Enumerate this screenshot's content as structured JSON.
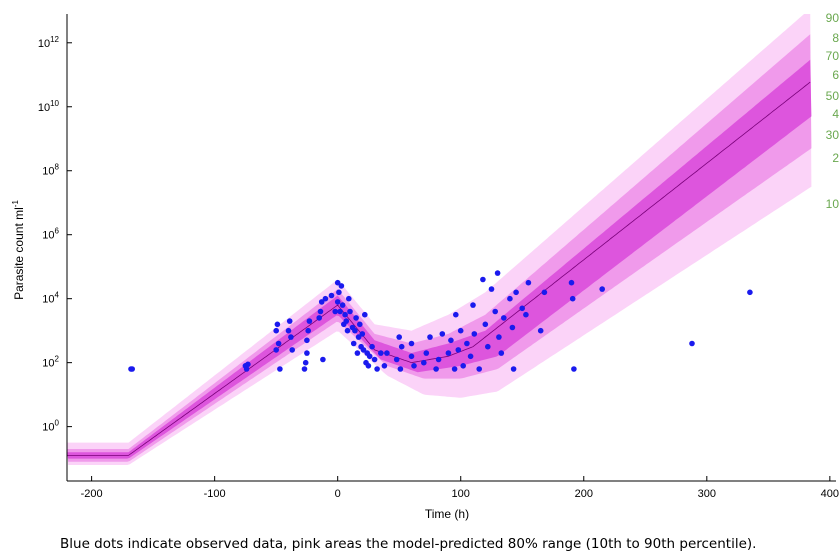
{
  "caption": "Blue dots indicate observed data, pink areas the model-predicted 80% range (10th to 90th percentile).",
  "right_edge_labels": [
    "90",
    "8",
    "70",
    "6",
    "50",
    "4",
    "30",
    "2",
    "10"
  ],
  "colors": {
    "band_outer": "#fbd3f8",
    "band_middle": "#f09aeb",
    "band_inner": "#dd55dd",
    "band_core": "#cc22cc",
    "median_line": "#7a007a",
    "dots": "#1a1aee",
    "axis": "#000000",
    "right_labels": "#6aa84f"
  },
  "chart_data": {
    "type": "scatter",
    "xlabel": "Time (h)",
    "ylabel": "Parasite count ml",
    "ylabel_sup": "-1",
    "xlim": [
      -220,
      405
    ],
    "ylim_log10": [
      -1.7,
      12.9
    ],
    "y_scale": "log10",
    "x_ticks": [
      -200,
      -100,
      0,
      100,
      200,
      300,
      400
    ],
    "y_ticks_exp": [
      0,
      2,
      4,
      6,
      8,
      10,
      12
    ],
    "y_tick_base": "10",
    "median_curve": [
      [
        -220,
        -0.9
      ],
      [
        -170,
        -0.9
      ],
      [
        0,
        3.8
      ],
      [
        30,
        2.4
      ],
      [
        60,
        2.0
      ],
      [
        90,
        2.2
      ],
      [
        110,
        2.5
      ],
      [
        385,
        10.8
      ]
    ],
    "bands": [
      {
        "name": "outer",
        "lower": [
          [
            -220,
            -1.2
          ],
          [
            -170,
            -1.2
          ],
          [
            0,
            3.0
          ],
          [
            40,
            1.6
          ],
          [
            70,
            1.0
          ],
          [
            100,
            0.9
          ],
          [
            130,
            1.1
          ],
          [
            385,
            7.5
          ]
        ],
        "upper": [
          [
            -220,
            -0.5
          ],
          [
            -170,
            -0.5
          ],
          [
            0,
            4.6
          ],
          [
            30,
            3.2
          ],
          [
            60,
            3.0
          ],
          [
            90,
            3.5
          ],
          [
            120,
            4.2
          ],
          [
            385,
            13.1
          ]
        ]
      },
      {
        "name": "middle",
        "lower": [
          [
            -220,
            -1.1
          ],
          [
            -170,
            -1.1
          ],
          [
            0,
            3.3
          ],
          [
            40,
            1.9
          ],
          [
            70,
            1.5
          ],
          [
            100,
            1.5
          ],
          [
            130,
            1.8
          ],
          [
            385,
            8.7
          ]
        ],
        "upper": [
          [
            -220,
            -0.7
          ],
          [
            -170,
            -0.7
          ],
          [
            0,
            4.3
          ],
          [
            30,
            2.9
          ],
          [
            60,
            2.6
          ],
          [
            90,
            2.9
          ],
          [
            120,
            3.5
          ],
          [
            385,
            12.3
          ]
        ]
      },
      {
        "name": "inner",
        "lower": [
          [
            -220,
            -1.0
          ],
          [
            -170,
            -1.0
          ],
          [
            0,
            3.5
          ],
          [
            35,
            2.1
          ],
          [
            65,
            1.7
          ],
          [
            100,
            1.9
          ],
          [
            130,
            2.2
          ],
          [
            385,
            9.7
          ]
        ],
        "upper": [
          [
            -220,
            -0.8
          ],
          [
            -170,
            -0.8
          ],
          [
            0,
            4.1
          ],
          [
            30,
            2.7
          ],
          [
            60,
            2.3
          ],
          [
            90,
            2.6
          ],
          [
            120,
            3.0
          ],
          [
            385,
            11.5
          ]
        ]
      }
    ],
    "points": [
      [
        -168,
        1.8
      ],
      [
        -167,
        1.8
      ],
      [
        -75,
        1.9
      ],
      [
        -74,
        1.8
      ],
      [
        -73,
        1.95
      ],
      [
        -50,
        2.4
      ],
      [
        -50,
        3.0
      ],
      [
        -49,
        3.2
      ],
      [
        -48,
        2.6
      ],
      [
        -47,
        1.8
      ],
      [
        -40,
        3.0
      ],
      [
        -39,
        3.3
      ],
      [
        -38,
        2.8
      ],
      [
        -37,
        2.4
      ],
      [
        -27,
        1.8
      ],
      [
        -26,
        2.0
      ],
      [
        -25,
        2.3
      ],
      [
        -25,
        2.7
      ],
      [
        -24,
        3.0
      ],
      [
        -23,
        3.3
      ],
      [
        -15,
        3.4
      ],
      [
        -14,
        3.6
      ],
      [
        -13,
        3.9
      ],
      [
        -12,
        2.1
      ],
      [
        -10,
        4.0
      ],
      [
        -5,
        4.1
      ],
      [
        -2,
        3.6
      ],
      [
        0,
        3.9
      ],
      [
        0,
        4.5
      ],
      [
        1,
        4.2
      ],
      [
        2,
        3.6
      ],
      [
        3,
        4.4
      ],
      [
        4,
        3.8
      ],
      [
        5,
        3.2
      ],
      [
        6,
        3.5
      ],
      [
        7,
        3.3
      ],
      [
        8,
        3.0
      ],
      [
        9,
        4.0
      ],
      [
        10,
        3.6
      ],
      [
        12,
        3.1
      ],
      [
        13,
        2.6
      ],
      [
        14,
        3.0
      ],
      [
        15,
        3.4
      ],
      [
        16,
        2.3
      ],
      [
        17,
        2.8
      ],
      [
        18,
        3.2
      ],
      [
        19,
        2.5
      ],
      [
        20,
        2.9
      ],
      [
        21,
        2.4
      ],
      [
        22,
        3.5
      ],
      [
        23,
        2.0
      ],
      [
        24,
        2.3
      ],
      [
        25,
        1.9
      ],
      [
        26,
        2.2
      ],
      [
        28,
        2.5
      ],
      [
        30,
        2.1
      ],
      [
        32,
        1.8
      ],
      [
        35,
        2.3
      ],
      [
        38,
        1.9
      ],
      [
        40,
        2.3
      ],
      [
        48,
        2.1
      ],
      [
        50,
        2.8
      ],
      [
        51,
        1.8
      ],
      [
        52,
        2.5
      ],
      [
        60,
        2.2
      ],
      [
        60,
        2.6
      ],
      [
        62,
        1.9
      ],
      [
        70,
        2.0
      ],
      [
        72,
        2.3
      ],
      [
        75,
        2.8
      ],
      [
        80,
        1.8
      ],
      [
        82,
        2.1
      ],
      [
        85,
        2.9
      ],
      [
        90,
        2.3
      ],
      [
        92,
        2.7
      ],
      [
        95,
        1.8
      ],
      [
        96,
        3.5
      ],
      [
        98,
        2.4
      ],
      [
        100,
        3.0
      ],
      [
        102,
        1.9
      ],
      [
        105,
        2.6
      ],
      [
        108,
        2.2
      ],
      [
        110,
        3.8
      ],
      [
        111,
        2.9
      ],
      [
        115,
        1.8
      ],
      [
        118,
        4.6
      ],
      [
        120,
        3.2
      ],
      [
        122,
        2.5
      ],
      [
        125,
        4.3
      ],
      [
        128,
        3.6
      ],
      [
        130,
        4.8
      ],
      [
        131,
        2.8
      ],
      [
        133,
        2.3
      ],
      [
        135,
        3.4
      ],
      [
        140,
        4.0
      ],
      [
        142,
        3.1
      ],
      [
        143,
        1.8
      ],
      [
        145,
        4.2
      ],
      [
        150,
        3.7
      ],
      [
        153,
        3.5
      ],
      [
        155,
        4.5
      ],
      [
        165,
        3.0
      ],
      [
        168,
        4.2
      ],
      [
        190,
        4.5
      ],
      [
        191,
        4.0
      ],
      [
        192,
        1.8
      ],
      [
        215,
        4.3
      ],
      [
        288,
        2.6
      ],
      [
        335,
        4.2
      ]
    ]
  }
}
